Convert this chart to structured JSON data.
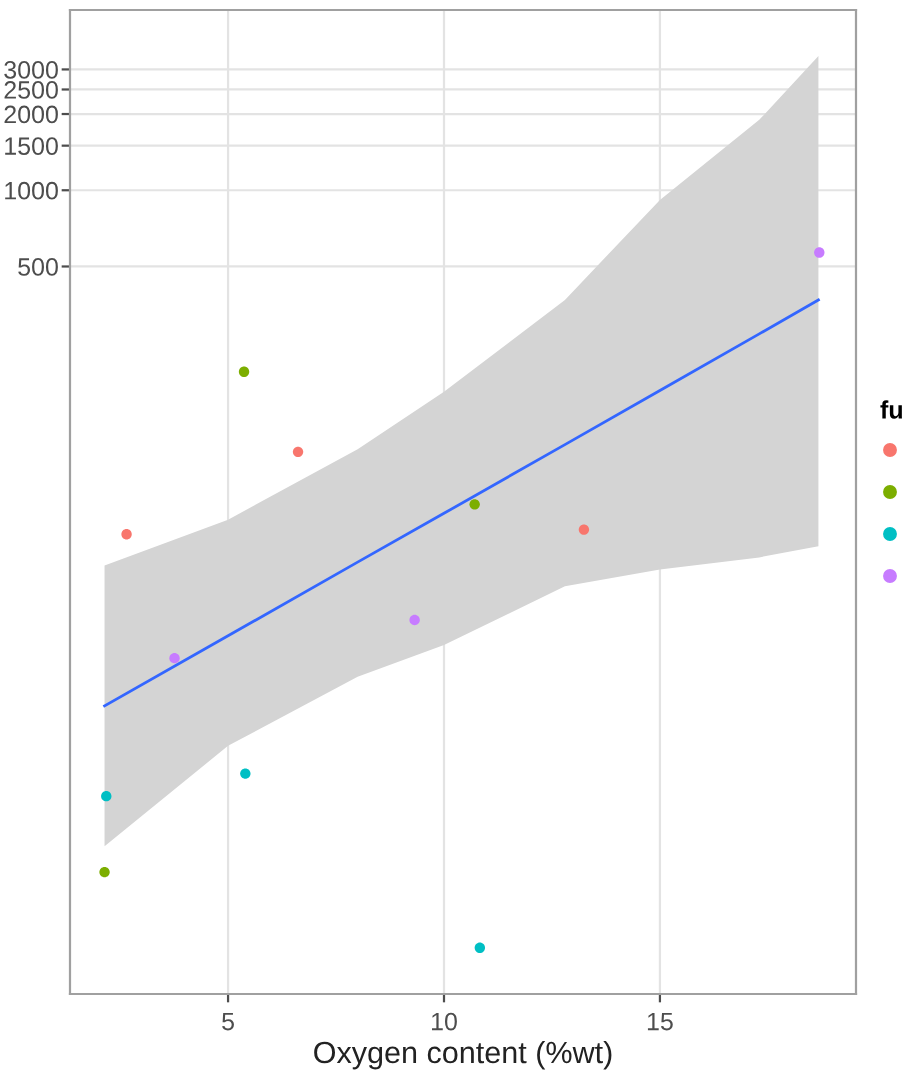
{
  "chart_data": {
    "type": "scatter",
    "xlabel": "Oxygen content (%wt)",
    "legend_title": "fu",
    "log": "y",
    "grid": true,
    "marker": "circle",
    "xlim": [
      1.34,
      19.54
    ],
    "xticks": [
      5,
      10,
      15
    ],
    "ylim": [
      0.67,
      5150
    ],
    "yticks": [
      500,
      1000,
      1500,
      2000,
      2500,
      3000
    ],
    "series": [
      {
        "color": "#f8766d",
        "x": [
          2.65,
          6.62,
          13.24
        ],
        "values": [
          43.8,
          92.7,
          45.7
        ]
      },
      {
        "color": "#7cae00",
        "x": [
          5.37,
          10.71,
          2.14
        ],
        "values": [
          192,
          57.5,
          2.03
        ]
      },
      {
        "color": "#00bfc4",
        "x": [
          2.18,
          5.4,
          10.83
        ],
        "values": [
          4.05,
          4.97,
          1.02
        ]
      },
      {
        "color": "#c77cff",
        "x": [
          9.32,
          3.76,
          18.69
        ],
        "values": [
          20.1,
          14.2,
          568
        ]
      },
      {
        "type": "line",
        "color": "#3366ff",
        "marker": "none",
        "x": [
          2.14,
          5,
          8,
          10,
          12.8,
          15,
          17.3,
          18.67
        ],
        "values": [
          9.2,
          17.4,
          34,
          53,
          99,
          162,
          271,
          369
        ],
        "lower": [
          2.57,
          6.4,
          12,
          16,
          27.3,
          31.8,
          35.5,
          39.3
        ],
        "upper": [
          33,
          50,
          95,
          160,
          369,
          916,
          1897,
          3390
        ]
      }
    ]
  }
}
